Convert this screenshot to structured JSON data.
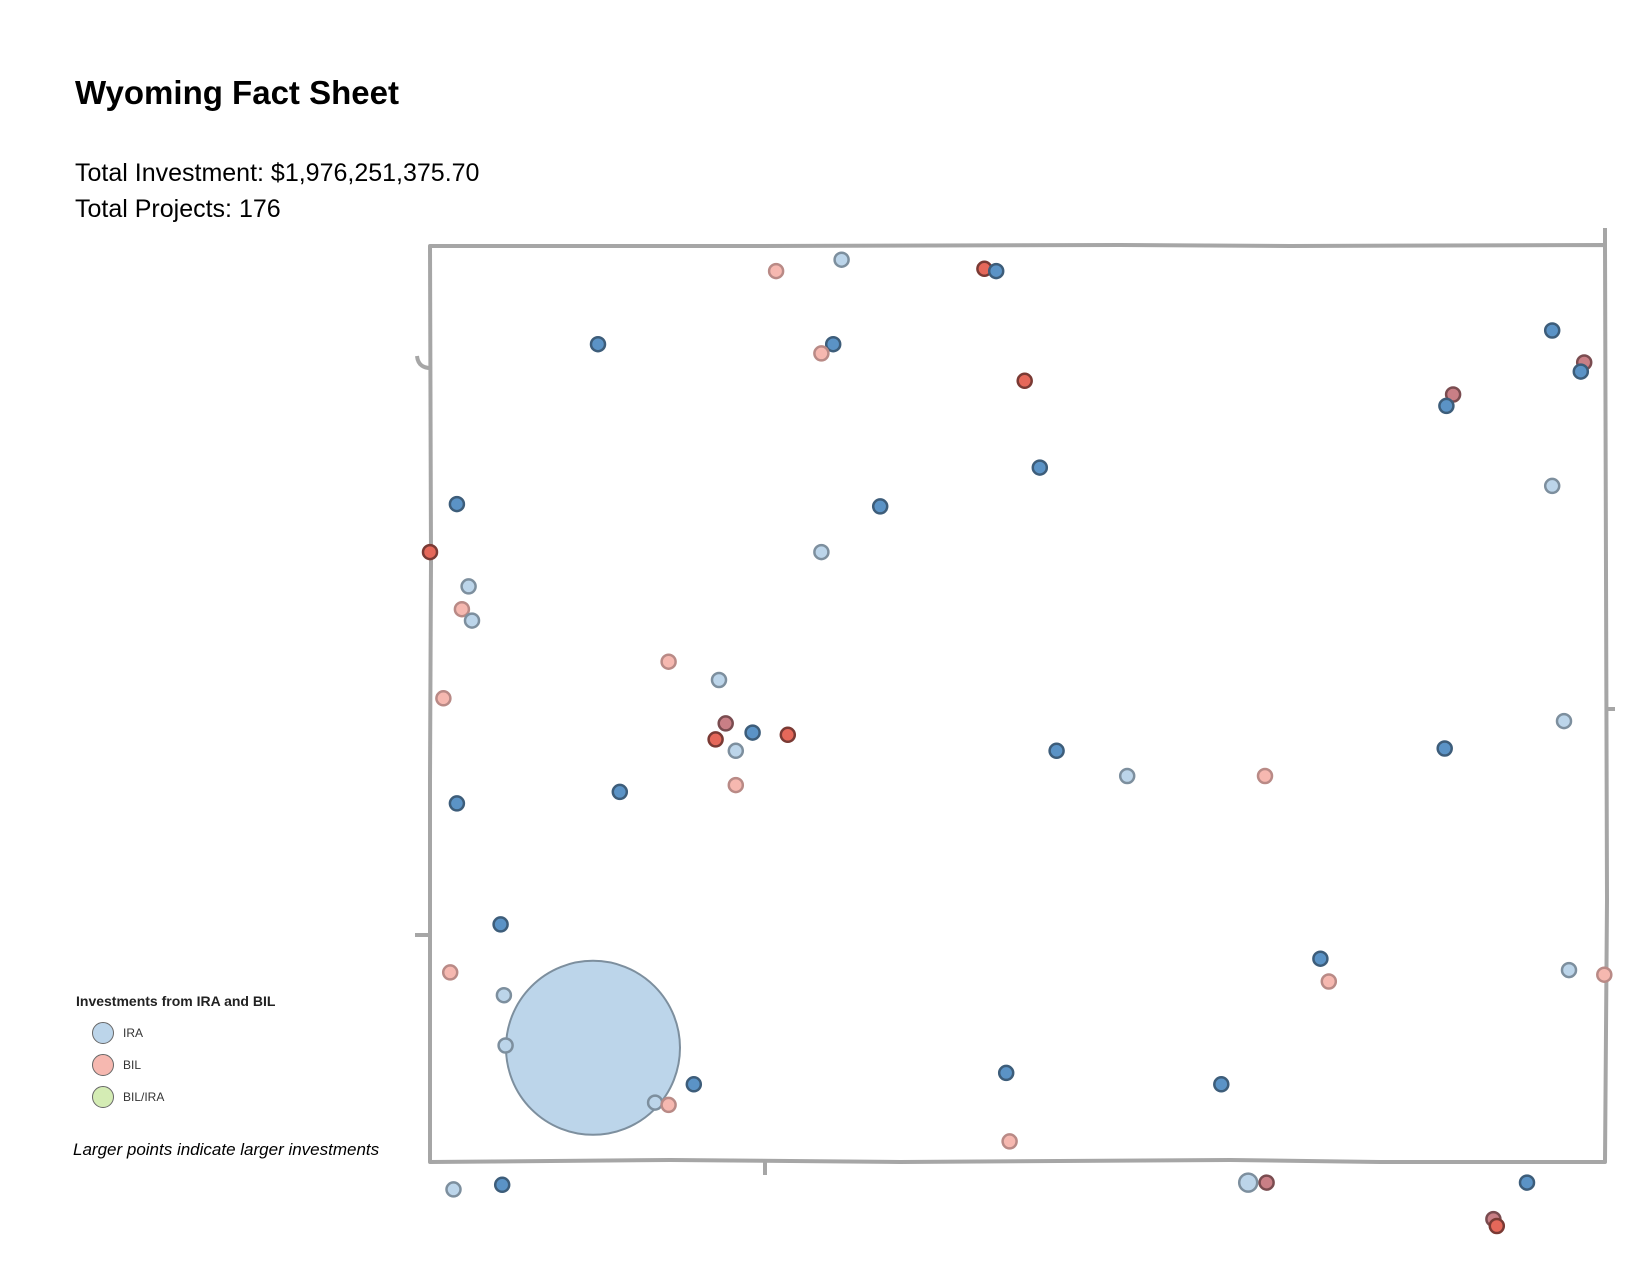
{
  "header": {
    "title": "Wyoming Fact Sheet",
    "total_investment": "Total Investment: $1,976,251,375.70",
    "total_projects": "Total Projects: 176"
  },
  "legend": {
    "title": "Investments from IRA and BIL",
    "items": [
      {
        "label": "IRA",
        "color": "#bcd5ea"
      },
      {
        "label": "BIL",
        "color": "#f6b8b0"
      },
      {
        "label": "BIL/IRA",
        "color": "#d4ecb4"
      }
    ]
  },
  "note": "Larger points indicate larger investments",
  "colors": {
    "ira_dark": "#5b93c6",
    "ira_light": "#bcd5ea",
    "bil_dark": "#e5685a",
    "bil_light": "#f6b8b0",
    "bil_muted": "#c97f86",
    "border": "#a6a6a6"
  },
  "map": {
    "shape": "rectangle-outline",
    "points": [
      {
        "kind": "ira_light",
        "lon": -108.6,
        "lat": 44.94,
        "size": "small"
      },
      {
        "kind": "bil_light",
        "lon": -108.99,
        "lat": 44.89,
        "size": "small"
      },
      {
        "kind": "bil_dark",
        "lon": -107.75,
        "lat": 44.9,
        "size": "small"
      },
      {
        "kind": "ira_dark",
        "lon": -107.68,
        "lat": 44.89,
        "size": "small"
      },
      {
        "kind": "ira_dark",
        "lon": -110.05,
        "lat": 44.57,
        "size": "small"
      },
      {
        "kind": "ira_dark",
        "lon": -108.65,
        "lat": 44.57,
        "size": "small"
      },
      {
        "kind": "bil_light",
        "lon": -108.72,
        "lat": 44.53,
        "size": "small"
      },
      {
        "kind": "ira_dark",
        "lon": -104.37,
        "lat": 44.63,
        "size": "small"
      },
      {
        "kind": "bil_dark",
        "lon": -107.51,
        "lat": 44.41,
        "size": "small"
      },
      {
        "kind": "bil_muted",
        "lon": -104.96,
        "lat": 44.35,
        "size": "small"
      },
      {
        "kind": "ira_dark",
        "lon": -105.0,
        "lat": 44.3,
        "size": "small"
      },
      {
        "kind": "ira_dark",
        "lon": -107.42,
        "lat": 44.03,
        "size": "small"
      },
      {
        "kind": "ira_dark",
        "lon": -110.89,
        "lat": 43.87,
        "size": "small"
      },
      {
        "kind": "ira_dark",
        "lon": -108.37,
        "lat": 43.86,
        "size": "small"
      },
      {
        "kind": "ira_light",
        "lon": -104.37,
        "lat": 43.95,
        "size": "small"
      },
      {
        "kind": "bil_dark",
        "lon": -111.05,
        "lat": 43.66,
        "size": "small"
      },
      {
        "kind": "ira_light",
        "lon": -108.72,
        "lat": 43.66,
        "size": "small"
      },
      {
        "kind": "ira_light",
        "lon": -110.82,
        "lat": 43.51,
        "size": "small"
      },
      {
        "kind": "bil_light",
        "lon": -110.86,
        "lat": 43.41,
        "size": "small"
      },
      {
        "kind": "ira_light",
        "lon": -110.8,
        "lat": 43.36,
        "size": "small"
      },
      {
        "kind": "bil_light",
        "lon": -109.63,
        "lat": 43.18,
        "size": "small"
      },
      {
        "kind": "bil_light",
        "lon": -110.97,
        "lat": 43.02,
        "size": "small"
      },
      {
        "kind": "ira_light",
        "lon": -109.33,
        "lat": 43.1,
        "size": "small"
      },
      {
        "kind": "bil_muted",
        "lon": -109.29,
        "lat": 42.91,
        "size": "small"
      },
      {
        "kind": "ira_dark",
        "lon": -109.13,
        "lat": 42.87,
        "size": "small"
      },
      {
        "kind": "bil_dark",
        "lon": -109.35,
        "lat": 42.84,
        "size": "small"
      },
      {
        "kind": "bil_dark",
        "lon": -108.92,
        "lat": 42.86,
        "size": "small"
      },
      {
        "kind": "ira_light",
        "lon": -109.23,
        "lat": 42.79,
        "size": "small"
      },
      {
        "kind": "ira_dark",
        "lon": -107.32,
        "lat": 42.79,
        "size": "small"
      },
      {
        "kind": "ira_dark",
        "lon": -105.01,
        "lat": 42.8,
        "size": "small"
      },
      {
        "kind": "ira_light",
        "lon": -104.3,
        "lat": 42.92,
        "size": "small"
      },
      {
        "kind": "ira_light",
        "lon": -106.9,
        "lat": 42.68,
        "size": "small"
      },
      {
        "kind": "bil_light",
        "lon": -106.08,
        "lat": 42.68,
        "size": "small"
      },
      {
        "kind": "bil_light",
        "lon": -109.23,
        "lat": 42.64,
        "size": "small"
      },
      {
        "kind": "ira_dark",
        "lon": -109.92,
        "lat": 42.61,
        "size": "small"
      },
      {
        "kind": "ira_dark",
        "lon": -110.89,
        "lat": 42.56,
        "size": "small"
      },
      {
        "kind": "ira_dark",
        "lon": -110.63,
        "lat": 42.03,
        "size": "small"
      },
      {
        "kind": "bil_light",
        "lon": -110.93,
        "lat": 41.82,
        "size": "small"
      },
      {
        "kind": "ira_light",
        "lon": -110.08,
        "lat": 41.49,
        "size": "xlarge"
      },
      {
        "kind": "ira_light",
        "lon": -110.61,
        "lat": 41.72,
        "size": "small"
      },
      {
        "kind": "ira_light",
        "lon": -110.6,
        "lat": 41.5,
        "size": "small"
      },
      {
        "kind": "ira_dark",
        "lon": -105.75,
        "lat": 41.88,
        "size": "small"
      },
      {
        "kind": "bil_light",
        "lon": -105.7,
        "lat": 41.78,
        "size": "small"
      },
      {
        "kind": "ira_light",
        "lon": -104.27,
        "lat": 41.83,
        "size": "small"
      },
      {
        "kind": "bil_light",
        "lon": -104.06,
        "lat": 41.81,
        "size": "small"
      },
      {
        "kind": "ira_dark",
        "lon": -107.62,
        "lat": 41.38,
        "size": "small"
      },
      {
        "kind": "ira_dark",
        "lon": -106.34,
        "lat": 41.33,
        "size": "small"
      },
      {
        "kind": "ira_dark",
        "lon": -109.48,
        "lat": 41.33,
        "size": "small"
      },
      {
        "kind": "ira_light",
        "lon": -109.71,
        "lat": 41.25,
        "size": "small"
      },
      {
        "kind": "bil_light",
        "lon": -109.63,
        "lat": 41.24,
        "size": "small"
      },
      {
        "kind": "bil_light",
        "lon": -107.6,
        "lat": 41.08,
        "size": "small"
      },
      {
        "kind": "ira_light",
        "lon": -110.91,
        "lat": 40.87,
        "size": "small"
      },
      {
        "kind": "ira_dark",
        "lon": -110.62,
        "lat": 40.89,
        "size": "small"
      },
      {
        "kind": "ira_light",
        "lon": -106.18,
        "lat": 40.9,
        "size": "medium"
      },
      {
        "kind": "bil_muted",
        "lon": -106.07,
        "lat": 40.9,
        "size": "small"
      },
      {
        "kind": "ira_dark",
        "lon": -104.52,
        "lat": 40.9,
        "size": "small"
      },
      {
        "kind": "bil_muted",
        "lon": -104.72,
        "lat": 40.74,
        "size": "small"
      },
      {
        "kind": "bil_dark",
        "lon": -104.7,
        "lat": 40.71,
        "size": "small"
      },
      {
        "kind": "bil_muted",
        "lon": -104.18,
        "lat": 44.49,
        "size": "small"
      },
      {
        "kind": "ira_dark",
        "lon": -104.2,
        "lat": 44.45,
        "size": "small"
      }
    ]
  }
}
